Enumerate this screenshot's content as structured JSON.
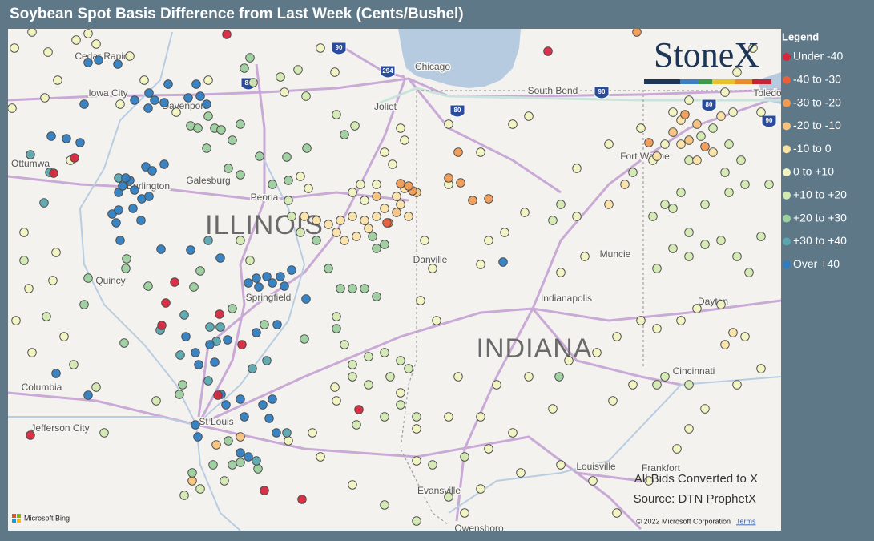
{
  "header": {
    "title": "Soybean Spot Basis Difference from Last Week (Cents/Bushel)"
  },
  "legend": {
    "title": "Legend",
    "items": [
      {
        "label": "Under -40",
        "color": "#d7263d"
      },
      {
        "label": "-40 to -30",
        "color": "#e8603c"
      },
      {
        "label": "-30 to -20",
        "color": "#f09a54"
      },
      {
        "label": "-20 to -10",
        "color": "#f7c27d"
      },
      {
        "label": "-10 to 0",
        "color": "#fbe3a6"
      },
      {
        "label": "0 to +10",
        "color": "#f1f4c0"
      },
      {
        "label": "+10 to +20",
        "color": "#d3e9b0"
      },
      {
        "label": "+20 to +30",
        "color": "#9ccf9e"
      },
      {
        "label": "+30 to +40",
        "color": "#5aa6ae"
      },
      {
        "label": "Over +40",
        "color": "#2f7dc0"
      }
    ]
  },
  "map": {
    "states": [
      "ILLINOIS",
      "INDIANA"
    ],
    "cities": [
      "Cedar Rapids",
      "Iowa City",
      "Davenport",
      "Ottumwa",
      "Burlington",
      "Galesburg",
      "Peoria",
      "Quincy",
      "Chicago",
      "Joliet",
      "South Bend",
      "Toledo",
      "Fort Wayne",
      "Muncie",
      "Danville",
      "Springfield",
      "Indianapolis",
      "Dayton",
      "Cincinnati",
      "Columbia",
      "Jefferson City",
      "St Louis",
      "Louisville",
      "Frankfort",
      "Evansville",
      "Owensboro"
    ],
    "interstates": [
      "90",
      "294",
      "88",
      "80",
      "90",
      "80",
      "90"
    ]
  },
  "logo": "StoneX",
  "notes": [
    "All Bids Converted to X",
    "Source: DTN ProphetX"
  ],
  "attribution": {
    "provider": "Microsoft Bing",
    "copyright": "© 2022 Microsoft Corporation",
    "terms": "Terms"
  }
}
